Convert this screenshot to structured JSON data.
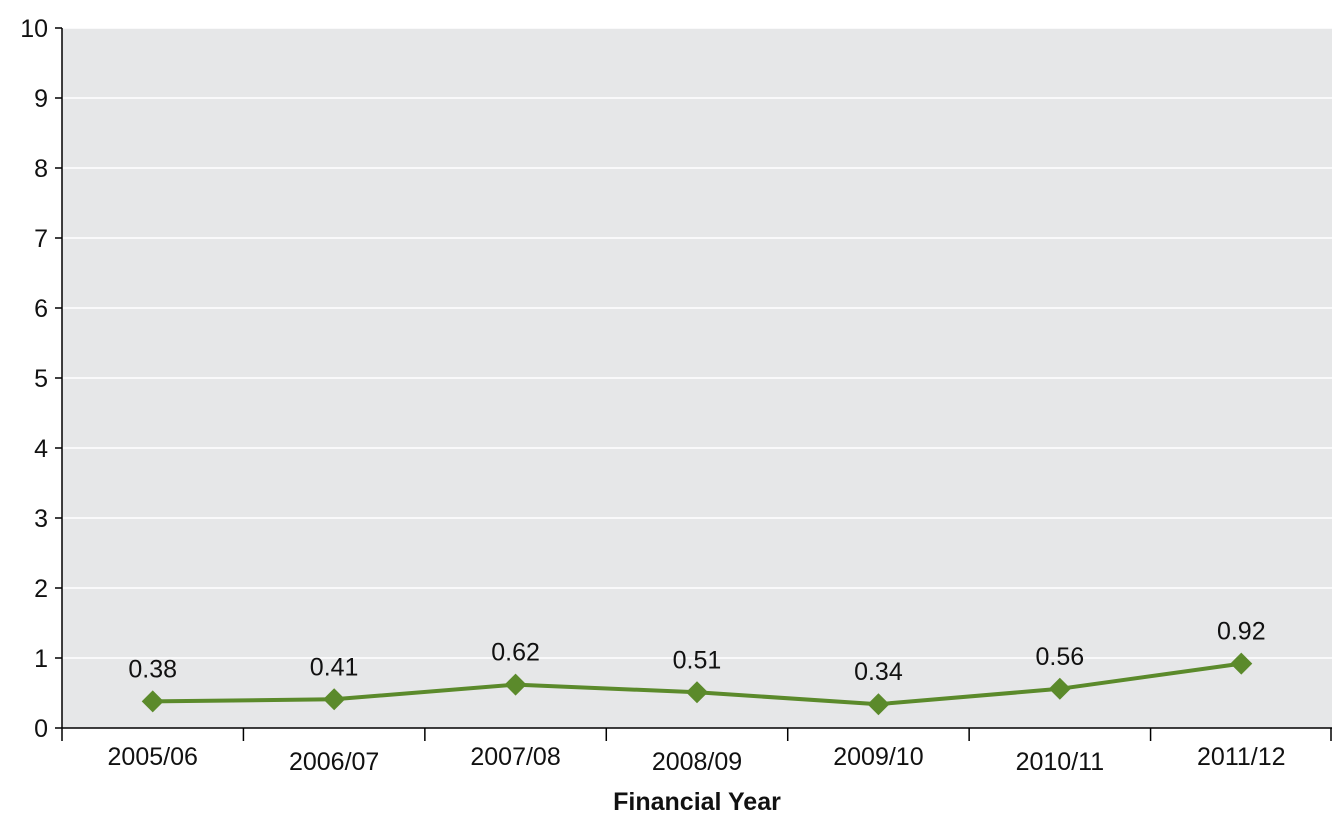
{
  "chart_data": {
    "type": "line",
    "title": "",
    "xlabel": "Financial Year",
    "ylabel": "",
    "ylim": [
      0,
      10
    ],
    "yticks": [
      0,
      1,
      2,
      3,
      4,
      5,
      6,
      7,
      8,
      9,
      10
    ],
    "grid": "horizontal",
    "legend": "none",
    "categories": [
      "2005/06",
      "2006/07",
      "2007/08",
      "2008/09",
      "2009/10",
      "2010/11",
      "2011/12"
    ],
    "series": [
      {
        "values": [
          0.38,
          0.41,
          0.62,
          0.51,
          0.34,
          0.56,
          0.92
        ],
        "data_labels": [
          "0.38",
          "0.41",
          "0.62",
          "0.51",
          "0.34",
          "0.56",
          "0.92"
        ],
        "color": "#5b8a2b",
        "marker": "diamond"
      }
    ],
    "colors": {
      "plot_background": "#e6e7e8",
      "gridline": "#ffffff",
      "axis": "#000000"
    }
  }
}
